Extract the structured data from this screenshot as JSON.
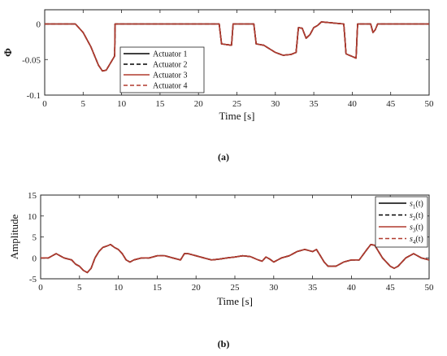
{
  "chart_data": [
    {
      "type": "line",
      "panel_label": "(a)",
      "xlabel": "Time [s]",
      "ylabel": "Φ",
      "xlim": [
        0,
        50
      ],
      "ylim": [
        -0.1,
        0.02
      ],
      "xticks": [
        0,
        5,
        10,
        15,
        20,
        25,
        30,
        35,
        40,
        45,
        50
      ],
      "yticks": [
        0,
        -0.05,
        -0.1
      ],
      "ytick_labels": [
        "0",
        "-0.05",
        "-0.1"
      ],
      "legend": {
        "placement": "bottom-left",
        "entries": [
          "Actuator 1",
          "Actuator 2",
          "Actuator 3",
          "Actuator 4"
        ]
      },
      "series": [
        {
          "name": "Actuator 1",
          "color": "#000000",
          "dash": "solid",
          "x": [
            0,
            4,
            5,
            6,
            6.5,
            7,
            7.5,
            8,
            8.5,
            9.1,
            9.15,
            22.7,
            23,
            24.3,
            24.5,
            27.2,
            27.5,
            28.5,
            30,
            31,
            32,
            32.7,
            33,
            33.5,
            34,
            34.5,
            35,
            35.5,
            36,
            38.9,
            39.2,
            40.5,
            40.7,
            42.4,
            42.7,
            43,
            43.3,
            50
          ],
          "y": [
            0,
            0,
            -0.012,
            -0.032,
            -0.045,
            -0.058,
            -0.066,
            -0.065,
            -0.056,
            -0.045,
            0,
            0,
            -0.028,
            -0.03,
            0,
            0,
            -0.028,
            -0.03,
            -0.04,
            -0.044,
            -0.043,
            -0.04,
            -0.005,
            -0.006,
            -0.02,
            -0.015,
            -0.005,
            -0.002,
            0.003,
            0,
            -0.042,
            -0.048,
            0,
            0,
            -0.012,
            -0.008,
            0,
            0
          ]
        },
        {
          "name": "Actuator 2",
          "color": "#000000",
          "dash": "dashed",
          "x": [
            0,
            4,
            5,
            6,
            6.5,
            7,
            7.5,
            8,
            8.5,
            9.1,
            9.15,
            22.7,
            23,
            24.3,
            24.5,
            27.2,
            27.5,
            28.5,
            30,
            31,
            32,
            32.7,
            33,
            33.5,
            34,
            34.5,
            35,
            35.5,
            36,
            38.9,
            39.2,
            40.5,
            40.7,
            42.4,
            42.7,
            43,
            43.3,
            50
          ],
          "y": [
            0,
            0,
            -0.012,
            -0.032,
            -0.045,
            -0.058,
            -0.066,
            -0.065,
            -0.056,
            -0.045,
            0,
            0,
            -0.028,
            -0.03,
            0,
            0,
            -0.028,
            -0.03,
            -0.04,
            -0.044,
            -0.043,
            -0.04,
            -0.005,
            -0.006,
            -0.02,
            -0.015,
            -0.005,
            -0.002,
            0.003,
            0,
            -0.042,
            -0.048,
            0,
            0,
            -0.012,
            -0.008,
            0,
            0
          ]
        },
        {
          "name": "Actuator 3",
          "color": "#b03a2e",
          "dash": "solid",
          "x": [
            0,
            4,
            5,
            6,
            6.5,
            7,
            7.5,
            8,
            8.5,
            9.1,
            9.15,
            22.7,
            23,
            24.3,
            24.5,
            27.2,
            27.5,
            28.5,
            30,
            31,
            32,
            32.7,
            33,
            33.5,
            34,
            34.5,
            35,
            35.5,
            36,
            38.9,
            39.2,
            40.5,
            40.7,
            42.4,
            42.7,
            43,
            43.3,
            50
          ],
          "y": [
            0,
            0,
            -0.012,
            -0.032,
            -0.045,
            -0.058,
            -0.066,
            -0.065,
            -0.056,
            -0.045,
            0,
            0,
            -0.028,
            -0.03,
            0,
            0,
            -0.028,
            -0.03,
            -0.04,
            -0.044,
            -0.043,
            -0.04,
            -0.005,
            -0.006,
            -0.02,
            -0.015,
            -0.005,
            -0.002,
            0.003,
            0,
            -0.042,
            -0.048,
            0,
            0,
            -0.012,
            -0.008,
            0,
            0
          ]
        },
        {
          "name": "Actuator 4",
          "color": "#b03a2e",
          "dash": "dashed",
          "x": [
            0,
            4,
            5,
            6,
            6.5,
            7,
            7.5,
            8,
            8.5,
            9.1,
            9.15,
            22.7,
            23,
            24.3,
            24.5,
            27.2,
            27.5,
            28.5,
            30,
            31,
            32,
            32.7,
            33,
            33.5,
            34,
            34.5,
            35,
            35.5,
            36,
            38.9,
            39.2,
            40.5,
            40.7,
            42.4,
            42.7,
            43,
            43.3,
            50
          ],
          "y": [
            0,
            0,
            -0.012,
            -0.032,
            -0.045,
            -0.058,
            -0.066,
            -0.065,
            -0.056,
            -0.045,
            0,
            0,
            -0.028,
            -0.03,
            0,
            0,
            -0.028,
            -0.03,
            -0.04,
            -0.044,
            -0.043,
            -0.04,
            -0.005,
            -0.006,
            -0.02,
            -0.015,
            -0.005,
            -0.002,
            0.003,
            0,
            -0.042,
            -0.048,
            0,
            0,
            -0.012,
            -0.008,
            0,
            0
          ]
        }
      ]
    },
    {
      "type": "line",
      "panel_label": "(b)",
      "xlabel": "Time [s]",
      "ylabel": "Amplitude",
      "xlim": [
        0,
        50
      ],
      "ylim": [
        -5,
        15
      ],
      "xticks": [
        0,
        5,
        10,
        15,
        20,
        25,
        30,
        35,
        40,
        45,
        50
      ],
      "yticks": [
        15,
        10,
        5,
        0,
        -5
      ],
      "ytick_labels": [
        "15",
        "10",
        "5",
        "0",
        "-5"
      ],
      "legend": {
        "placement": "top-right",
        "entries": [
          {
            "base": "s",
            "sub": "1",
            "suffix": "(t)"
          },
          {
            "base": "s",
            "sub": "2",
            "suffix": "(t)"
          },
          {
            "base": "s",
            "sub": "3",
            "suffix": "(t)"
          },
          {
            "base": "s",
            "sub": "4",
            "suffix": "(t)"
          }
        ]
      },
      "series": [
        {
          "name": "s1(t)",
          "color": "#000000",
          "dash": "solid",
          "x": [
            0,
            1,
            2,
            3,
            4,
            4.5,
            5,
            5.5,
            6,
            6.5,
            7,
            7.5,
            8,
            8.5,
            9,
            9.5,
            10,
            10.5,
            11,
            11.5,
            12,
            13,
            14,
            15,
            16,
            17,
            18,
            18.5,
            19,
            20,
            21,
            22,
            23,
            24,
            25,
            26,
            27,
            28,
            28.5,
            29,
            29.5,
            30,
            31,
            32,
            33,
            34,
            35,
            35.5,
            36,
            36.5,
            37,
            38,
            39,
            40,
            41,
            42,
            42.5,
            43,
            44,
            45,
            45.5,
            46,
            47,
            48,
            49,
            50
          ],
          "y": [
            0,
            0,
            1,
            0,
            -0.5,
            -1.5,
            -2,
            -3,
            -3.5,
            -2.5,
            0,
            1.5,
            2.5,
            2.8,
            3.2,
            2.5,
            2,
            1,
            -0.5,
            -1,
            -0.5,
            0,
            0,
            0.5,
            0.5,
            0,
            -0.5,
            1,
            1,
            0.5,
            0,
            -0.5,
            -0.3,
            0,
            0.2,
            0.5,
            0.3,
            -0.5,
            -0.8,
            0.2,
            -0.3,
            -1,
            0,
            0.5,
            1.5,
            2,
            1.5,
            2,
            0.5,
            -1,
            -2,
            -2,
            -1,
            -0.5,
            -0.5,
            2,
            3.2,
            3,
            0,
            -2,
            -2.5,
            -2,
            0,
            1,
            0,
            -0.5
          ]
        },
        {
          "name": "s2(t)",
          "color": "#000000",
          "dash": "dashed",
          "x": [
            0,
            1,
            2,
            3,
            4,
            4.5,
            5,
            5.5,
            6,
            6.5,
            7,
            7.5,
            8,
            8.5,
            9,
            9.5,
            10,
            10.5,
            11,
            11.5,
            12,
            13,
            14,
            15,
            16,
            17,
            18,
            18.5,
            19,
            20,
            21,
            22,
            23,
            24,
            25,
            26,
            27,
            28,
            28.5,
            29,
            29.5,
            30,
            31,
            32,
            33,
            34,
            35,
            35.5,
            36,
            36.5,
            37,
            38,
            39,
            40,
            41,
            42,
            42.5,
            43,
            44,
            45,
            45.5,
            46,
            47,
            48,
            49,
            50
          ],
          "y": [
            0,
            0,
            1,
            0,
            -0.5,
            -1.5,
            -2,
            -3,
            -3.5,
            -2.5,
            0,
            1.5,
            2.5,
            2.8,
            3.2,
            2.5,
            2,
            1,
            -0.5,
            -1,
            -0.5,
            0,
            0,
            0.5,
            0.5,
            0,
            -0.5,
            1,
            1,
            0.5,
            0,
            -0.5,
            -0.3,
            0,
            0.2,
            0.5,
            0.3,
            -0.5,
            -0.8,
            0.2,
            -0.3,
            -1,
            0,
            0.5,
            1.5,
            2,
            1.5,
            2,
            0.5,
            -1,
            -2,
            -2,
            -1,
            -0.5,
            -0.5,
            2,
            3.2,
            3,
            0,
            -2,
            -2.5,
            -2,
            0,
            1,
            0,
            -0.5
          ]
        },
        {
          "name": "s3(t)",
          "color": "#b03a2e",
          "dash": "solid",
          "x": [
            0,
            1,
            2,
            3,
            4,
            4.5,
            5,
            5.5,
            6,
            6.5,
            7,
            7.5,
            8,
            8.5,
            9,
            9.5,
            10,
            10.5,
            11,
            11.5,
            12,
            13,
            14,
            15,
            16,
            17,
            18,
            18.5,
            19,
            20,
            21,
            22,
            23,
            24,
            25,
            26,
            27,
            28,
            28.5,
            29,
            29.5,
            30,
            31,
            32,
            33,
            34,
            35,
            35.5,
            36,
            36.5,
            37,
            38,
            39,
            40,
            41,
            42,
            42.5,
            43,
            44,
            45,
            45.5,
            46,
            47,
            48,
            49,
            50
          ],
          "y": [
            0,
            0,
            1,
            0,
            -0.5,
            -1.5,
            -2,
            -3,
            -3.5,
            -2.5,
            0,
            1.5,
            2.5,
            2.8,
            3.2,
            2.5,
            2,
            1,
            -0.5,
            -1,
            -0.5,
            0,
            0,
            0.5,
            0.5,
            0,
            -0.5,
            1,
            1,
            0.5,
            0,
            -0.5,
            -0.3,
            0,
            0.2,
            0.5,
            0.3,
            -0.5,
            -0.8,
            0.2,
            -0.3,
            -1,
            0,
            0.5,
            1.5,
            2,
            1.5,
            2,
            0.5,
            -1,
            -2,
            -2,
            -1,
            -0.5,
            -0.5,
            2,
            3.2,
            3,
            0,
            -2,
            -2.5,
            -2,
            0,
            1,
            0,
            -0.5
          ]
        },
        {
          "name": "s4(t)",
          "color": "#b03a2e",
          "dash": "dashed",
          "x": [
            0,
            1,
            2,
            3,
            4,
            4.5,
            5,
            5.5,
            6,
            6.5,
            7,
            7.5,
            8,
            8.5,
            9,
            9.5,
            10,
            10.5,
            11,
            11.5,
            12,
            13,
            14,
            15,
            16,
            17,
            18,
            18.5,
            19,
            20,
            21,
            22,
            23,
            24,
            25,
            26,
            27,
            28,
            28.5,
            29,
            29.5,
            30,
            31,
            32,
            33,
            34,
            35,
            35.5,
            36,
            36.5,
            37,
            38,
            39,
            40,
            41,
            42,
            42.5,
            43,
            44,
            45,
            45.5,
            46,
            47,
            48,
            49,
            50
          ],
          "y": [
            0,
            0,
            1,
            0,
            -0.5,
            -1.5,
            -2,
            -3,
            -3.5,
            -2.5,
            0,
            1.5,
            2.5,
            2.8,
            3.2,
            2.5,
            2,
            1,
            -0.5,
            -1,
            -0.5,
            0,
            0,
            0.5,
            0.5,
            0,
            -0.5,
            1,
            1,
            0.5,
            0,
            -0.5,
            -0.3,
            0,
            0.2,
            0.5,
            0.3,
            -0.5,
            -0.8,
            0.2,
            -0.3,
            -1,
            0,
            0.5,
            1.5,
            2,
            1.5,
            2,
            0.5,
            -1,
            -2,
            -2,
            -1,
            -0.5,
            -0.5,
            2,
            3.2,
            3,
            0,
            -2,
            -2.5,
            -2,
            0,
            1,
            0,
            -0.5
          ]
        }
      ]
    }
  ]
}
